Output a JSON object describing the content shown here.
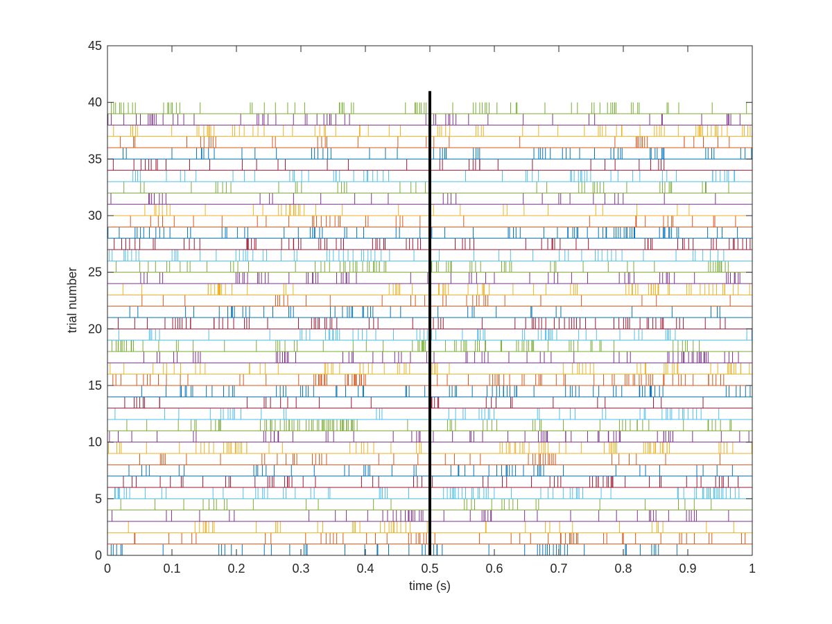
{
  "chart_data": {
    "type": "raster",
    "xlabel": "time (s)",
    "ylabel": "trial number",
    "xlim": [
      0,
      1
    ],
    "ylim": [
      0,
      45
    ],
    "xticks": [
      0,
      0.1,
      0.2,
      0.3,
      0.4,
      0.5,
      0.6,
      0.7,
      0.8,
      0.9,
      1
    ],
    "xtick_labels": [
      "0",
      "0.1",
      "0.2",
      "0.3",
      "0.4",
      "0.5",
      "0.6",
      "0.7",
      "0.8",
      "0.9",
      "1"
    ],
    "yticks": [
      0,
      5,
      10,
      15,
      20,
      25,
      30,
      35,
      40,
      45
    ],
    "ytick_labels": [
      "0",
      "5",
      "10",
      "15",
      "20",
      "25",
      "30",
      "35",
      "40",
      "45"
    ],
    "trials": 40,
    "duration_s": 1.0,
    "spikes_per_trial_approx": 35,
    "trial_colors": [
      "#0072BD",
      "#D95319",
      "#EDB120",
      "#7E2F8E",
      "#77AC30",
      "#4DBEEE",
      "#A2142F"
    ],
    "event_marker": {
      "x": 0.5,
      "y_range": [
        0,
        41
      ],
      "color": "#000000"
    },
    "grid": false,
    "legend": "none"
  }
}
